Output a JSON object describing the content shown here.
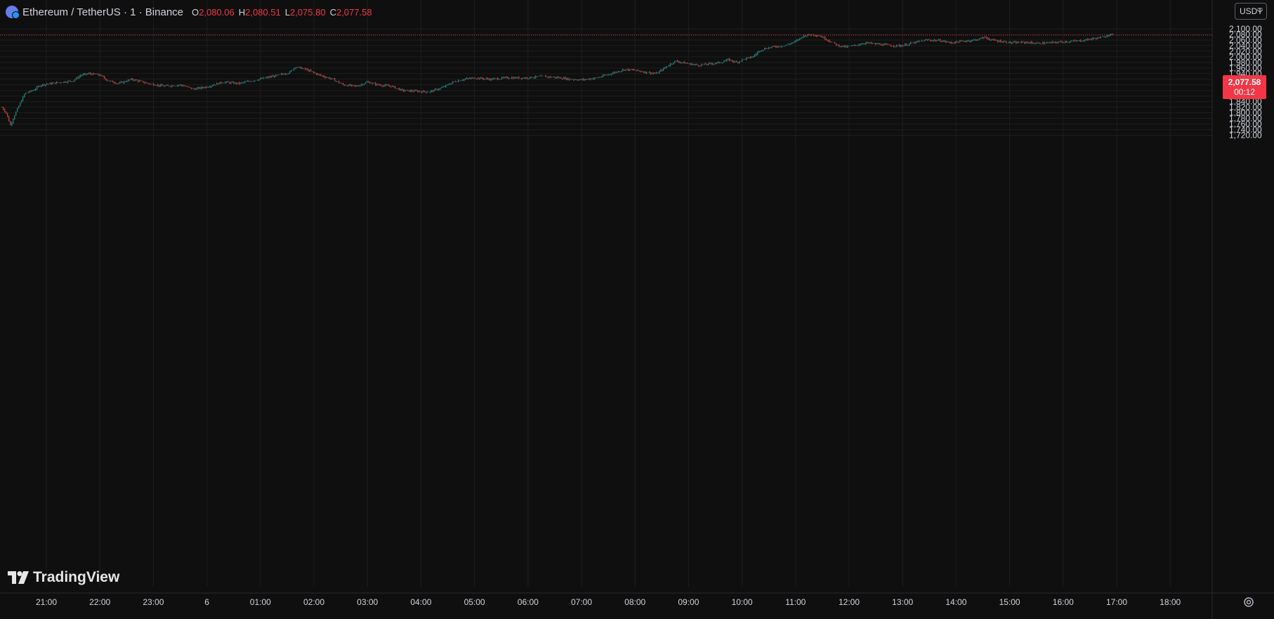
{
  "header": {
    "symbol": "Ethereum / TetherUS · 1 · Binance",
    "open_label": "O",
    "open": "2,080.06",
    "high_label": "H",
    "high": "2,080.51",
    "low_label": "L",
    "low": "2,075.80",
    "close_label": "C",
    "close": "2,077.58"
  },
  "currency_button": "USDT",
  "last_price": {
    "value": "2,077.58",
    "countdown": "00:12",
    "color": "#f23645"
  },
  "brand": "TradingView",
  "colors": {
    "background": "#0f0f0f",
    "grid": "#1e1e1e",
    "up": "#26a69a",
    "down": "#ef5350",
    "axis_text": "#d1d4dc"
  },
  "chart_data": {
    "type": "candlestick",
    "interval": "1 minute",
    "title": "Ethereum / TetherUS · 1 · Binance",
    "ylim": [
      1715,
      2127
    ],
    "y_ticks": [
      1720,
      1740,
      1760,
      1780,
      1800,
      1820,
      1840,
      1860,
      1880,
      1900,
      1920,
      1940,
      1960,
      1980,
      2000,
      2020,
      2040,
      2060,
      2080,
      2100
    ],
    "y_tick_labels": [
      "1,720.00",
      "1,740.00",
      "1,760.00",
      "1,780.00",
      "1,800.00",
      "1,820.00",
      "1,840.00",
      "1,860.00",
      "1,880.00",
      "1,900.00",
      "1,920.00",
      "1,940.00",
      "1,960.00",
      "1,980.00",
      "2,000.00",
      "2,020.00",
      "2,040.00",
      "2,060.00",
      "2,080.00",
      "2,100.00"
    ],
    "x_ticks": [
      21,
      22,
      23,
      24,
      25,
      26,
      27,
      28,
      29,
      30,
      31,
      32,
      33,
      34,
      35,
      36,
      37,
      38,
      39,
      40,
      41,
      42
    ],
    "x_tick_labels": [
      "21:00",
      "22:00",
      "23:00",
      "6",
      "01:00",
      "02:00",
      "03:00",
      "04:00",
      "05:00",
      "06:00",
      "07:00",
      "08:00",
      "09:00",
      "10:00",
      "11:00",
      "12:00",
      "13:00",
      "14:00",
      "15:00",
      "16:00",
      "17:00",
      "18:00"
    ],
    "x_range": [
      20.17,
      42.85
    ],
    "price_path": [
      [
        20.17,
        1820
      ],
      [
        20.25,
        1800
      ],
      [
        20.33,
        1755
      ],
      [
        20.4,
        1790
      ],
      [
        20.5,
        1830
      ],
      [
        20.6,
        1870
      ],
      [
        20.75,
        1880
      ],
      [
        20.9,
        1900
      ],
      [
        21.1,
        1905
      ],
      [
        21.3,
        1910
      ],
      [
        21.5,
        1915
      ],
      [
        21.65,
        1935
      ],
      [
        21.8,
        1940
      ],
      [
        22.0,
        1935
      ],
      [
        22.15,
        1915
      ],
      [
        22.35,
        1905
      ],
      [
        22.6,
        1920
      ],
      [
        22.9,
        1905
      ],
      [
        23.2,
        1895
      ],
      [
        23.5,
        1900
      ],
      [
        23.75,
        1885
      ],
      [
        24.0,
        1893
      ],
      [
        24.3,
        1910
      ],
      [
        24.6,
        1905
      ],
      [
        24.85,
        1915
      ],
      [
        25.1,
        1925
      ],
      [
        25.35,
        1935
      ],
      [
        25.55,
        1945
      ],
      [
        25.65,
        1965
      ],
      [
        25.85,
        1955
      ],
      [
        26.1,
        1935
      ],
      [
        26.35,
        1920
      ],
      [
        26.55,
        1900
      ],
      [
        26.8,
        1895
      ],
      [
        27.0,
        1910
      ],
      [
        27.2,
        1900
      ],
      [
        27.45,
        1895
      ],
      [
        27.65,
        1880
      ],
      [
        27.85,
        1878
      ],
      [
        28.15,
        1875
      ],
      [
        28.4,
        1890
      ],
      [
        28.6,
        1910
      ],
      [
        28.8,
        1920
      ],
      [
        29.0,
        1925
      ],
      [
        29.3,
        1920
      ],
      [
        29.6,
        1925
      ],
      [
        29.95,
        1925
      ],
      [
        30.3,
        1930
      ],
      [
        30.6,
        1925
      ],
      [
        30.8,
        1920
      ],
      [
        31.0,
        1918
      ],
      [
        31.3,
        1925
      ],
      [
        31.55,
        1940
      ],
      [
        31.8,
        1955
      ],
      [
        32.0,
        1952
      ],
      [
        32.2,
        1945
      ],
      [
        32.4,
        1940
      ],
      [
        32.55,
        1960
      ],
      [
        32.75,
        1985
      ],
      [
        33.0,
        1975
      ],
      [
        33.2,
        1970
      ],
      [
        33.4,
        1975
      ],
      [
        33.6,
        1980
      ],
      [
        33.75,
        1990
      ],
      [
        33.9,
        1980
      ],
      [
        34.0,
        1990
      ],
      [
        34.2,
        2000
      ],
      [
        34.35,
        2025
      ],
      [
        34.55,
        2035
      ],
      [
        34.8,
        2040
      ],
      [
        35.0,
        2055
      ],
      [
        35.15,
        2075
      ],
      [
        35.3,
        2080
      ],
      [
        35.45,
        2075
      ],
      [
        35.6,
        2060
      ],
      [
        35.8,
        2040
      ],
      [
        35.95,
        2035
      ],
      [
        36.1,
        2040
      ],
      [
        36.3,
        2050
      ],
      [
        36.55,
        2045
      ],
      [
        36.8,
        2040
      ],
      [
        37.0,
        2040
      ],
      [
        37.2,
        2050
      ],
      [
        37.45,
        2060
      ],
      [
        37.7,
        2058
      ],
      [
        37.9,
        2050
      ],
      [
        38.1,
        2055
      ],
      [
        38.35,
        2060
      ],
      [
        38.55,
        2070
      ],
      [
        38.65,
        2060
      ],
      [
        38.85,
        2055
      ],
      [
        39.05,
        2050
      ],
      [
        39.3,
        2052
      ],
      [
        39.5,
        2048
      ],
      [
        39.75,
        2050
      ],
      [
        39.95,
        2053
      ],
      [
        40.15,
        2055
      ],
      [
        40.35,
        2058
      ],
      [
        40.55,
        2065
      ],
      [
        40.75,
        2070
      ],
      [
        40.85,
        2080
      ],
      [
        40.95,
        2077.58
      ]
    ],
    "last_price": 2077.58
  }
}
